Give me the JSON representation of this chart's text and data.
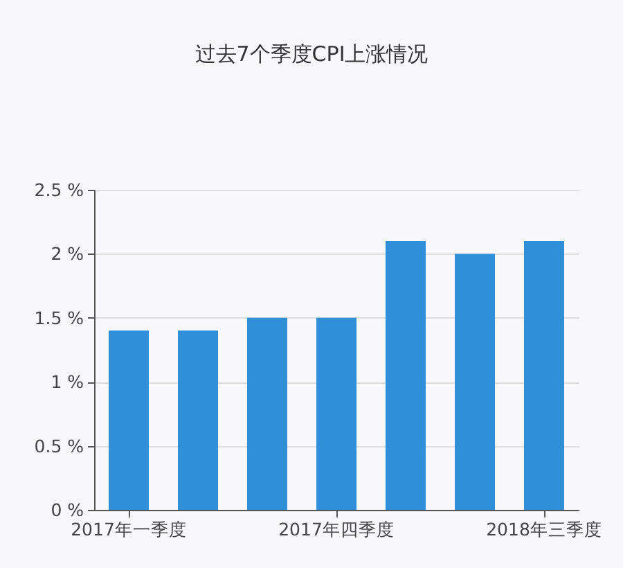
{
  "chart_data": {
    "type": "bar",
    "title": "过去7个季度CPI上涨情况",
    "categories": [
      "2017年一季度",
      null,
      null,
      "2017年四季度",
      null,
      null,
      "2018年三季度"
    ],
    "values": [
      1.4,
      1.4,
      1.5,
      1.5,
      2.1,
      2.0,
      2.1
    ],
    "color": "#2f8fd8",
    "ylim": [
      0,
      2.5
    ],
    "yticks": [
      {
        "value": 0,
        "label": "0 %"
      },
      {
        "value": 0.5,
        "label": "0.5 %"
      },
      {
        "value": 1,
        "label": "1 %"
      },
      {
        "value": 1.5,
        "label": "1.5 %"
      },
      {
        "value": 2,
        "label": "2 %"
      },
      {
        "value": 2.5,
        "label": "2.5 %"
      }
    ],
    "grid": "y"
  }
}
